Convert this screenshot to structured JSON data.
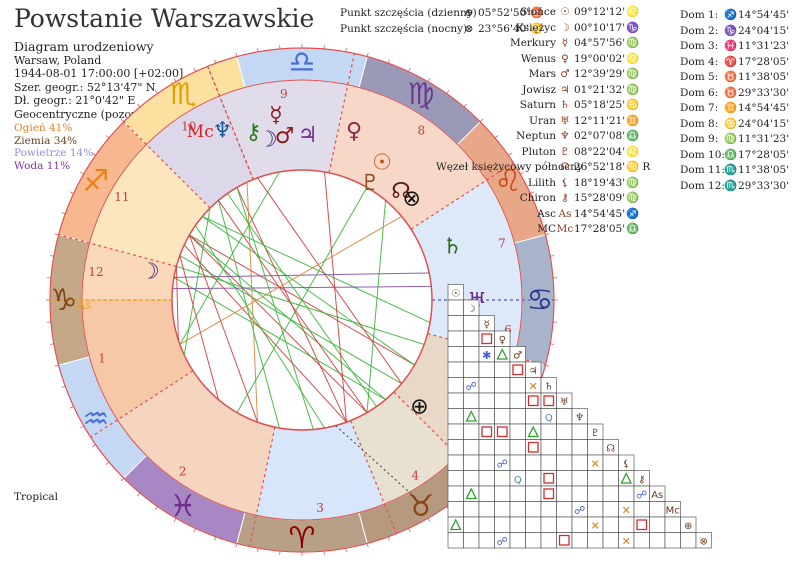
{
  "title": "Powstanie Warszawskie",
  "subtitle": "Diagram urodzeniowy",
  "place": "Warsaw, Poland",
  "datetime": "1944-08-01 17:00:00 [+02:00]",
  "latitude": "Szer. geogr.: 52°13'47\" N",
  "longitude": "Dł. geogr.: 21°0'42\" E",
  "ecliptic": "Geocentryczne (pozorne)",
  "elements": [
    {
      "label": "Ogień 41%",
      "color": "#e8801a"
    },
    {
      "label": "Ziemia 34%",
      "color": "#6b4226"
    },
    {
      "label": "Powietrze 14%",
      "color": "#8f8fd8"
    },
    {
      "label": "Woda 11%",
      "color": "#7a3b9a"
    }
  ],
  "zodiac_type": "Tropical",
  "fortune_points": [
    {
      "label": "Punkt szczęścia (dzienny)",
      "symbol": "⊕",
      "value": "05°52'50'",
      "sign": "♉"
    },
    {
      "label": "Punkt szczęścia (nocny)",
      "symbol": "⊗",
      "value": "23°56'40'",
      "sign": "♋"
    }
  ],
  "planets": [
    {
      "name": "Słońce",
      "symbol": "☉",
      "value": "09°12'12'",
      "sign": "♌"
    },
    {
      "name": "Księżyc",
      "symbol": "☽",
      "value": "00°10'17'",
      "sign": "♑"
    },
    {
      "name": "Merkury",
      "symbol": "☿",
      "value": "04°57'56'",
      "sign": "♍"
    },
    {
      "name": "Wenus",
      "symbol": "♀",
      "value": "19°00'02'",
      "sign": "♌"
    },
    {
      "name": "Mars",
      "symbol": "♂",
      "value": "12°39'29'",
      "sign": "♍"
    },
    {
      "name": "Jowisz",
      "symbol": "♃",
      "value": "01°21'32'",
      "sign": "♍"
    },
    {
      "name": "Saturn",
      "symbol": "♄",
      "value": "05°18'25'",
      "sign": "♋"
    },
    {
      "name": "Uran",
      "symbol": "♅",
      "value": "12°11'21'",
      "sign": "♊"
    },
    {
      "name": "Neptun",
      "symbol": "♆",
      "value": "02°07'08'",
      "sign": "♎"
    },
    {
      "name": "Pluton",
      "symbol": "♇",
      "value": "08°22'04'",
      "sign": "♌"
    },
    {
      "name": "Węzeł księżycowy północny",
      "symbol": "☊",
      "value": "26°52'18'",
      "sign": "♋",
      "retro": "R"
    },
    {
      "name": "Lilith",
      "symbol": "⚸",
      "value": "18°19'43'",
      "sign": "♍"
    },
    {
      "name": "Chiron",
      "symbol": "⚷",
      "value": "15°28'09'",
      "sign": "♍"
    },
    {
      "name": "Asc",
      "symbol": "As",
      "value": "14°54'45'",
      "sign": "♐"
    },
    {
      "name": "MC",
      "symbol": "Mc",
      "value": "17°28'05'",
      "sign": "♎"
    }
  ],
  "houses": [
    {
      "label": "Dom  1:",
      "sign": "♐",
      "value": "14°54'45'"
    },
    {
      "label": "Dom  2:",
      "sign": "♑",
      "value": "24°04'15'"
    },
    {
      "label": "Dom  3:",
      "sign": "♓",
      "value": "11°31'23'"
    },
    {
      "label": "Dom  4:",
      "sign": "♈",
      "value": "17°28'05'"
    },
    {
      "label": "Dom  5:",
      "sign": "♉",
      "value": "11°38'05'"
    },
    {
      "label": "Dom  6:",
      "sign": "♉",
      "value": "29°33'30'"
    },
    {
      "label": "Dom  7:",
      "sign": "♊",
      "value": "14°54'45'"
    },
    {
      "label": "Dom  8:",
      "sign": "♋",
      "value": "24°04'15'"
    },
    {
      "label": "Dom  9:",
      "sign": "♍",
      "value": "11°31'23'"
    },
    {
      "label": "Dom 10:",
      "sign": "♎",
      "value": "17°28'05'"
    },
    {
      "label": "Dom 11:",
      "sign": "♏",
      "value": "11°38'05'"
    },
    {
      "label": "Dom 12:",
      "sign": "♏",
      "value": "29°33'30'"
    }
  ],
  "wheel": {
    "mc_label": "Mc",
    "asc_label": "As",
    "house_numbers": [
      "1",
      "2",
      "3",
      "4",
      "5",
      "6",
      "7",
      "8",
      "9",
      "10",
      "11",
      "12"
    ],
    "signs": [
      {
        "glyph": "♈",
        "color": "#8b0000"
      },
      {
        "glyph": "♉",
        "color": "#8b4513"
      },
      {
        "glyph": "♊",
        "color": "#4a6fd6"
      },
      {
        "glyph": "♋",
        "color": "#2b3a8c"
      },
      {
        "glyph": "♌",
        "color": "#c8481a"
      },
      {
        "glyph": "♍",
        "color": "#6b3a8c"
      },
      {
        "glyph": "♎",
        "color": "#4a6fd6"
      },
      {
        "glyph": "♏",
        "color": "#e0a000"
      },
      {
        "glyph": "♐",
        "color": "#e8801a"
      },
      {
        "glyph": "♑",
        "color": "#7a4a1a"
      },
      {
        "glyph": "♒",
        "color": "#4a6fd6"
      },
      {
        "glyph": "♓",
        "color": "#6b2a8c"
      }
    ],
    "planet_glyphs": [
      {
        "symbol": "♆",
        "color": "#1a5a9a"
      },
      {
        "symbol": "⚷",
        "color": "#2a7a1a"
      },
      {
        "symbol": "☿",
        "color": "#8b1a1a"
      },
      {
        "symbol": "☽",
        "color": "#3a2a8c"
      },
      {
        "symbol": "♂",
        "color": "#8b1a1a"
      },
      {
        "symbol": "♃",
        "color": "#6b2a8c"
      },
      {
        "symbol": "♀",
        "color": "#8b2a4a"
      },
      {
        "symbol": "☉",
        "color": "#c8501a"
      },
      {
        "symbol": "♇",
        "color": "#8b4a1a"
      },
      {
        "symbol": "☊",
        "color": "#5a1a1a"
      },
      {
        "symbol": "⊗",
        "color": "#111111"
      },
      {
        "symbol": "♄",
        "color": "#2a6a1a"
      },
      {
        "symbol": "♅",
        "color": "#6b2a8c"
      },
      {
        "symbol": "☽",
        "color": "#3a2a8c"
      },
      {
        "symbol": "⊕",
        "color": "#111111"
      }
    ]
  },
  "aspect_grid": {
    "row_symbols": [
      "☉",
      "☽",
      "☿",
      "♀",
      "♂",
      "♃",
      "♄",
      "♅",
      "♆",
      "♇",
      "☊",
      "⚸",
      "⚷",
      "As",
      "Mc",
      "⊕",
      "⊗"
    ]
  }
}
